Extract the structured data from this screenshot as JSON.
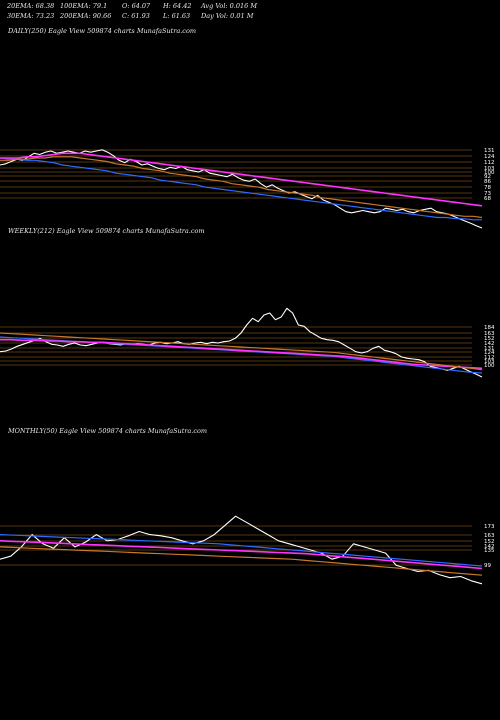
{
  "header": {
    "ema20": "20EMA: 68.38",
    "ema100": "100EMA: 79.1",
    "open": "O: 64.07",
    "high": "H: 64.42",
    "avgvol": "Avg Vol: 0.016  M",
    "ema30": "30EMA: 73.23",
    "ema200": "200EMA: 90.66",
    "close": "C: 61.93",
    "low": "L: 61.63",
    "dayvol": "Day Vol: 0.01  M"
  },
  "colors": {
    "background": "#000000",
    "price": "#ffffff",
    "ema_blue": "#2f6bff",
    "ema_magenta": "#ff33ff",
    "ema_orange": "#c8782a",
    "level_line": "#c8782a"
  },
  "chart_data": [
    {
      "type": "line",
      "title": "DAILY(250) Eagle  View  509874  charts MunafaSutra.com",
      "y_levels": [
        "131",
        "124",
        "112",
        "103",
        "100",
        "92",
        "86",
        "78",
        "73",
        "68"
      ],
      "series": [
        {
          "color": "#ffffff",
          "values": [
            120,
            121,
            123,
            125,
            124,
            127,
            130,
            129,
            131,
            132,
            130,
            131,
            132,
            131,
            130,
            132,
            131,
            132,
            133,
            131,
            128,
            124,
            122,
            125,
            123,
            120,
            121,
            119,
            117,
            116,
            118,
            117,
            119,
            116,
            115,
            114,
            116,
            113,
            112,
            111,
            110,
            112,
            109,
            107,
            106,
            108,
            104,
            101,
            103,
            100,
            98,
            96,
            97,
            95,
            93,
            91,
            94,
            90,
            88,
            86,
            83,
            80,
            79,
            80,
            81,
            80,
            79,
            80,
            83,
            82,
            81,
            82,
            80,
            79,
            81,
            82,
            83,
            80,
            79,
            78,
            76,
            74,
            72,
            70,
            68,
            66
          ]
        },
        {
          "color": "#2f6bff",
          "values": [
            126,
            125,
            125,
            124,
            124,
            123,
            122,
            120,
            119,
            118,
            117,
            116,
            115,
            113,
            112,
            111,
            110,
            109,
            107,
            106,
            105,
            104,
            103,
            101,
            100,
            99,
            98,
            97,
            96,
            95,
            94,
            93,
            92,
            91,
            90,
            89,
            88,
            87,
            86,
            85,
            84,
            83,
            82,
            81,
            80,
            79,
            78,
            77,
            76,
            75,
            75,
            74,
            74,
            73,
            73
          ]
        },
        {
          "color": "#ff33ff",
          "values": [
            126,
            126,
            126,
            127,
            127,
            128,
            129,
            130,
            130,
            130,
            129,
            128,
            127,
            126,
            125,
            124,
            123,
            122,
            121,
            120,
            119,
            118,
            117,
            116,
            115,
            114,
            113,
            112,
            111,
            110,
            109,
            108,
            107,
            106,
            105,
            104,
            103,
            102,
            101,
            100,
            99,
            98,
            97,
            96,
            95,
            94,
            93,
            92,
            91,
            90,
            89,
            88,
            87,
            86,
            85
          ]
        },
        {
          "color": "#c8782a",
          "values": [
            124,
            124,
            125,
            125,
            126,
            126,
            127,
            127,
            127,
            126,
            125,
            124,
            123,
            121,
            120,
            119,
            117,
            116,
            115,
            113,
            112,
            111,
            110,
            108,
            107,
            106,
            104,
            103,
            102,
            101,
            99,
            98,
            97,
            96,
            95,
            94,
            92,
            91,
            90,
            89,
            88,
            87,
            86,
            85,
            84,
            83,
            82,
            81,
            80,
            79,
            78,
            77,
            76,
            76,
            75
          ]
        }
      ]
    },
    {
      "type": "line",
      "title": "WEEKLY(212) Eagle  View  509874  charts MunafaSutra.com",
      "y_levels": [
        "184",
        "163",
        "152",
        "142",
        "131",
        "124",
        "112",
        "103",
        "100"
      ],
      "series": [
        {
          "color": "#ffffff",
          "values": [
            120,
            121,
            124,
            128,
            131,
            134,
            137,
            140,
            135,
            131,
            130,
            128,
            131,
            133,
            130,
            129,
            131,
            133,
            134,
            132,
            131,
            130,
            132,
            131,
            132,
            131,
            130,
            133,
            134,
            132,
            133,
            135,
            132,
            131,
            133,
            134,
            132,
            134,
            133,
            135,
            136,
            140,
            148,
            160,
            170,
            165,
            175,
            178,
            168,
            172,
            185,
            178,
            160,
            158,
            150,
            145,
            140,
            138,
            137,
            135,
            130,
            125,
            120,
            118,
            120,
            125,
            128,
            122,
            120,
            117,
            112,
            110,
            109,
            108,
            105,
            98,
            96,
            94,
            92,
            95,
            98,
            94,
            90,
            86,
            82
          ]
        },
        {
          "color": "#2f6bff",
          "values": [
            142,
            141,
            140,
            139,
            138,
            137,
            136,
            135,
            134,
            133,
            132,
            131,
            130,
            129,
            128,
            127,
            126,
            125,
            124,
            123,
            122,
            121,
            120,
            119,
            118,
            117,
            116,
            115,
            114,
            113,
            111,
            109,
            107,
            105,
            103,
            101,
            99,
            97,
            95,
            93,
            91,
            89,
            88
          ]
        },
        {
          "color": "#ff33ff",
          "values": [
            138,
            138,
            137,
            137,
            136,
            136,
            135,
            135,
            134,
            134,
            133,
            132,
            131,
            130,
            129,
            128,
            127,
            126,
            125,
            124,
            123,
            122,
            121,
            120,
            119,
            118,
            117,
            116,
            115,
            114,
            113,
            111,
            109,
            107,
            105,
            103,
            101,
            100,
            99,
            98,
            97,
            96,
            95
          ]
        },
        {
          "color": "#c8782a",
          "values": [
            148,
            147,
            146,
            145,
            144,
            143,
            142,
            141,
            140,
            139,
            138,
            137,
            136,
            135,
            134,
            133,
            132,
            131,
            130,
            129,
            128,
            127,
            126,
            125,
            124,
            123,
            122,
            121,
            120,
            119,
            117,
            115,
            113,
            111,
            109,
            107,
            105,
            103,
            101,
            99,
            97,
            95,
            93
          ]
        }
      ]
    },
    {
      "type": "line",
      "title": "MONTHLY(50) Eagle  View  509874  charts MunafaSutra.com",
      "y_levels": [
        "173",
        "163",
        "152",
        "142",
        "135",
        "99"
      ],
      "series": [
        {
          "color": "#ffffff",
          "values": [
            110,
            115,
            130,
            150,
            135,
            128,
            145,
            130,
            138,
            150,
            140,
            142,
            148,
            155,
            150,
            148,
            145,
            140,
            135,
            140,
            150,
            165,
            180,
            170,
            160,
            150,
            140,
            135,
            130,
            125,
            120,
            110,
            115,
            135,
            130,
            125,
            120,
            100,
            95,
            90,
            92,
            85,
            80,
            82,
            75,
            70
          ]
        },
        {
          "color": "#2f6bff",
          "values": [
            150,
            149,
            148,
            147,
            146,
            145,
            144,
            143,
            142,
            141,
            140,
            139,
            138,
            137,
            136,
            135,
            133,
            131,
            129,
            127,
            125,
            123,
            121,
            119,
            117,
            115,
            113,
            111,
            109,
            107,
            105,
            103,
            101,
            99
          ]
        },
        {
          "color": "#ff33ff",
          "values": [
            140,
            139,
            138,
            137,
            136,
            135,
            134,
            133,
            132,
            131,
            130,
            129,
            128,
            127,
            126,
            125,
            124,
            123,
            122,
            121,
            120,
            119,
            117,
            115,
            113,
            111,
            109,
            107,
            105,
            103,
            101,
            99,
            97,
            95
          ]
        },
        {
          "color": "#c8782a",
          "values": [
            130,
            129,
            128,
            127,
            126,
            125,
            124,
            123,
            122,
            121,
            120,
            119,
            118,
            117,
            116,
            115,
            114,
            113,
            112,
            111,
            110,
            108,
            106,
            104,
            102,
            100,
            98,
            96,
            94,
            92,
            90,
            88,
            86,
            84
          ]
        }
      ]
    }
  ]
}
